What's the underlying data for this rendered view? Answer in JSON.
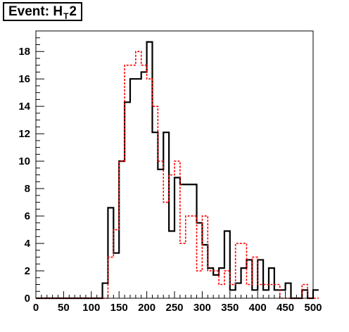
{
  "title": {
    "prefix": "Event: H",
    "subscript": "T",
    "suffix": "2"
  },
  "chart_data": {
    "type": "histogram",
    "title": "Event: H_T2",
    "xlabel": "",
    "ylabel": "",
    "xlim": [
      0,
      500
    ],
    "ylim": [
      0,
      19.5
    ],
    "bin_width": 10,
    "bin_edges_start": 0,
    "x_ticks": [
      0,
      50,
      100,
      150,
      200,
      250,
      300,
      350,
      400,
      450,
      500
    ],
    "y_ticks": [
      0,
      2,
      4,
      6,
      8,
      10,
      12,
      14,
      16,
      18
    ],
    "grid": false,
    "legend": "none",
    "series": [
      {
        "style": "solid",
        "color": "#000000",
        "values": [
          0,
          0,
          0,
          0,
          0,
          0,
          0,
          0,
          0,
          0,
          0,
          0,
          1.1,
          6.6,
          3.3,
          10.0,
          14.3,
          16.0,
          16.0,
          16.5,
          18.7,
          12.1,
          9.4,
          12.1,
          4.9,
          8.8,
          8.3,
          8.3,
          8.3,
          5.5,
          3.9,
          2.2,
          1.7,
          2.2,
          4.9,
          0.6,
          1.1,
          2.2,
          2.8,
          0.6,
          2.8,
          0.6,
          2.2,
          0.6,
          0.6,
          1.1,
          0,
          0,
          0.6,
          0,
          0.6
        ]
      },
      {
        "style": "dashed",
        "color": "#ff0000",
        "values": [
          0,
          0,
          0,
          0,
          0,
          0,
          0,
          0,
          0,
          0,
          0,
          0,
          0,
          3.0,
          5.0,
          10.0,
          17.0,
          17.0,
          18.0,
          17.0,
          16.0,
          14.0,
          10.0,
          7.0,
          9.0,
          10.0,
          4.0,
          6.0,
          6.0,
          2.0,
          6.0,
          2.0,
          2.0,
          1.0,
          2.0,
          1.0,
          4.0,
          4.0,
          1.0,
          3.0,
          1.0,
          1.0,
          1.0,
          1.0,
          0,
          0,
          0,
          0,
          1.0,
          0,
          0
        ]
      }
    ]
  }
}
